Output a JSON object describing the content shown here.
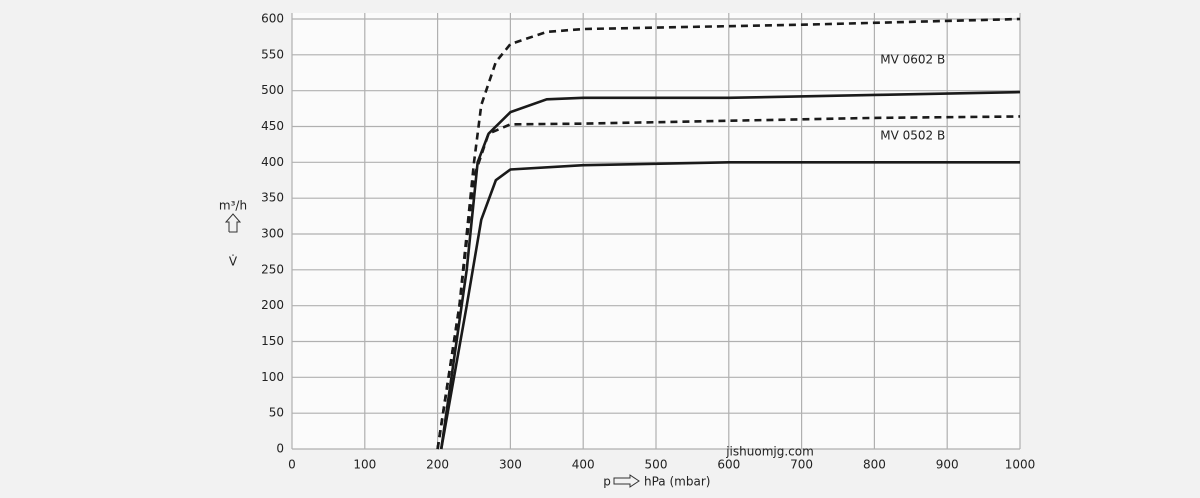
{
  "chart_data": {
    "type": "line",
    "x_label": "hPa (mbar)",
    "x_symbol": "p",
    "y_label": "m³/h",
    "y_symbol": "V̇",
    "watermark": "jishuomjg.com",
    "xlim": [
      0,
      1000
    ],
    "xticks": [
      0,
      100,
      200,
      300,
      400,
      500,
      600,
      700,
      800,
      900,
      1000
    ],
    "ylim": [
      0,
      600
    ],
    "yticks": [
      0,
      50,
      100,
      150,
      200,
      250,
      300,
      350,
      400,
      450,
      500,
      550,
      600
    ],
    "grid": true,
    "series": [
      {
        "color": "#1a1a1a",
        "style": "dashed",
        "x": [
          200,
          230,
          250,
          260,
          280,
          300,
          350,
          400,
          500,
          700,
          1000
        ],
        "values": [
          0,
          200,
          400,
          480,
          540,
          565,
          582,
          586,
          588,
          592,
          600
        ]
      },
      {
        "color": "#1a1a1a",
        "style": "solid",
        "x": [
          205,
          240,
          255,
          270,
          300,
          350,
          400,
          600,
          800,
          1000
        ],
        "values": [
          0,
          250,
          400,
          440,
          470,
          488,
          490,
          490,
          494,
          498
        ]
      },
      {
        "color": "#1a1a1a",
        "style": "dashed",
        "x": [
          200,
          230,
          250,
          270,
          300,
          400,
          600,
          800,
          1000
        ],
        "values": [
          0,
          200,
          380,
          440,
          453,
          454,
          458,
          462,
          464
        ]
      },
      {
        "color": "#1a1a1a",
        "style": "solid",
        "x": [
          205,
          240,
          260,
          280,
          300,
          400,
          600,
          1000
        ],
        "values": [
          0,
          200,
          320,
          375,
          390,
          396,
          400,
          400
        ]
      }
    ],
    "annotations": [
      {
        "text": "MV 0602 B",
        "x": 808,
        "y": 543
      },
      {
        "text": "MV 0502 B",
        "x": 808,
        "y": 437
      }
    ]
  }
}
